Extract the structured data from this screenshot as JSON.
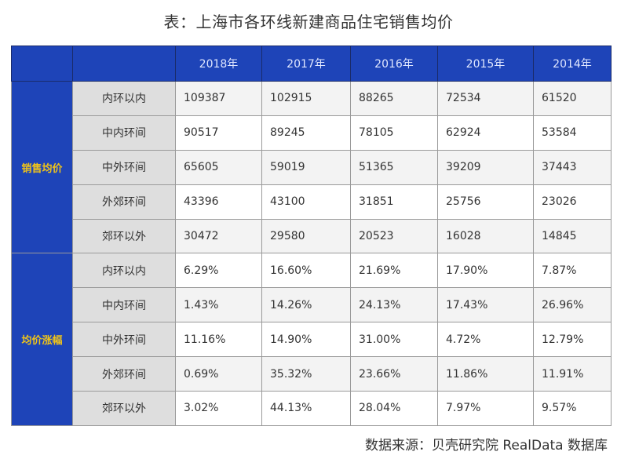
{
  "title": "表：上海市各环线新建商品住宅销售均价",
  "source": "数据来源：贝壳研究院 RealData 数据库",
  "colors": {
    "header_blue": "#1e44b8",
    "group_text": "#f0c419",
    "header_text": "#e0e7ff",
    "label_bg": "#dedede"
  },
  "table": {
    "corner_1": "",
    "corner_2": "",
    "years": [
      "2018年",
      "2017年",
      "2016年",
      "2015年",
      "2014年"
    ],
    "groups": [
      {
        "name": "销售均价",
        "rows": [
          {
            "label": "内环以内",
            "values": [
              "109387",
              "102915",
              "88265",
              "72534",
              "61520"
            ]
          },
          {
            "label": "中内环间",
            "values": [
              "90517",
              "89245",
              "78105",
              "62924",
              "53584"
            ]
          },
          {
            "label": "中外环间",
            "values": [
              "65605",
              "59019",
              "51365",
              "39209",
              "37443"
            ]
          },
          {
            "label": "外郊环间",
            "values": [
              "43396",
              "43100",
              "31851",
              "25756",
              "23026"
            ]
          },
          {
            "label": "郊环以外",
            "values": [
              "30472",
              "29580",
              "20523",
              "16028",
              "14845"
            ]
          }
        ]
      },
      {
        "name": "均价涨幅",
        "rows": [
          {
            "label": "内环以内",
            "values": [
              "6.29%",
              "16.60%",
              "21.69%",
              "17.90%",
              "7.87%"
            ]
          },
          {
            "label": "中内环间",
            "values": [
              "1.43%",
              "14.26%",
              "24.13%",
              "17.43%",
              "26.96%"
            ]
          },
          {
            "label": "中外环间",
            "values": [
              "11.16%",
              "14.90%",
              "31.00%",
              "4.72%",
              "12.79%"
            ]
          },
          {
            "label": "外郊环间",
            "values": [
              "0.69%",
              "35.32%",
              "23.66%",
              "11.86%",
              "11.91%"
            ]
          },
          {
            "label": "郊环以外",
            "values": [
              "3.02%",
              "44.13%",
              "28.04%",
              "7.97%",
              "9.57%"
            ]
          }
        ]
      }
    ]
  }
}
